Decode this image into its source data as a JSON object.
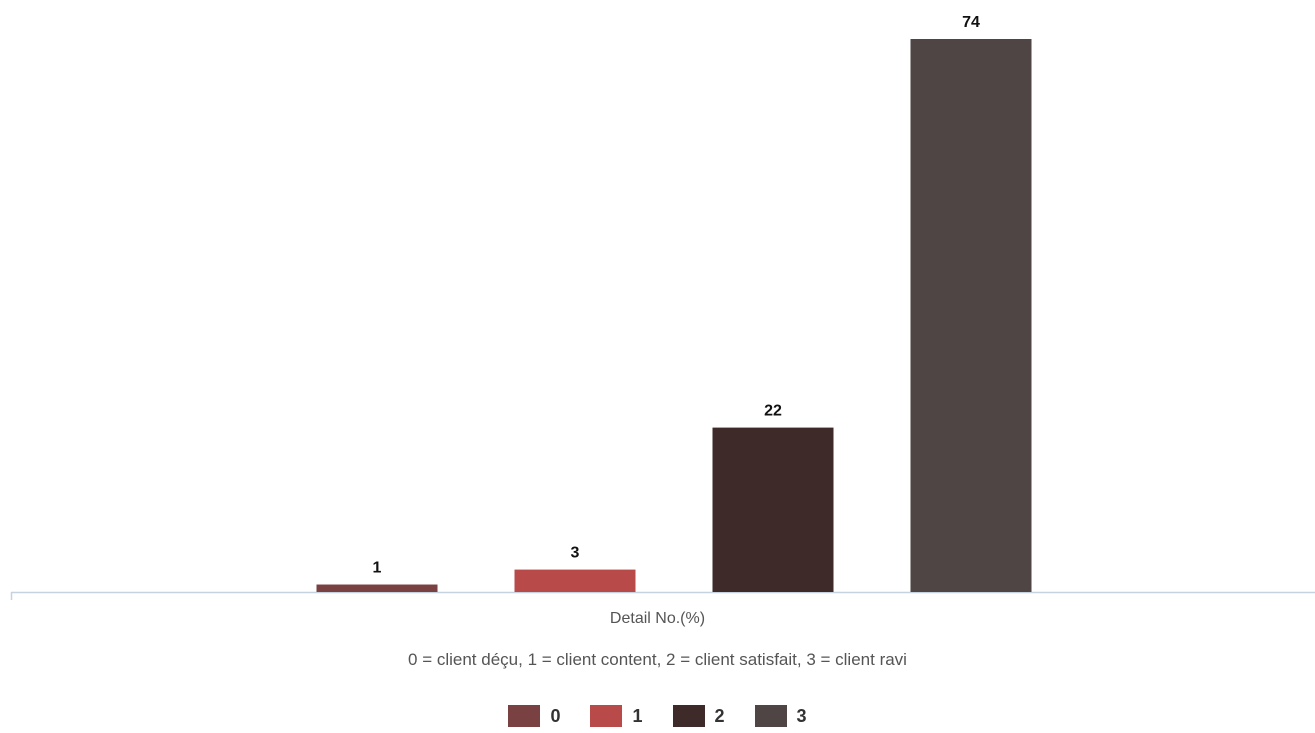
{
  "chart_data": {
    "type": "bar",
    "categories": [
      "0",
      "1",
      "2",
      "3"
    ],
    "values": [
      1,
      3,
      22,
      74
    ],
    "data_labels": [
      "1",
      "3",
      "22",
      "74"
    ],
    "colors": [
      "#7a4142",
      "#b84a4a",
      "#3f2a2a",
      "#4e4544"
    ],
    "xlabel": "Detail No.(%)",
    "subtitle": "0 = client déçu, 1 = client content, 2 = client satisfait, 3 = client ravi",
    "ylim": [
      0,
      74
    ],
    "grid": false,
    "legend_position": "bottom",
    "legend": [
      {
        "label": "0",
        "color": "#7a4142"
      },
      {
        "label": "1",
        "color": "#b84a4a"
      },
      {
        "label": "2",
        "color": "#3f2a2a"
      },
      {
        "label": "3",
        "color": "#4e4544"
      }
    ]
  }
}
